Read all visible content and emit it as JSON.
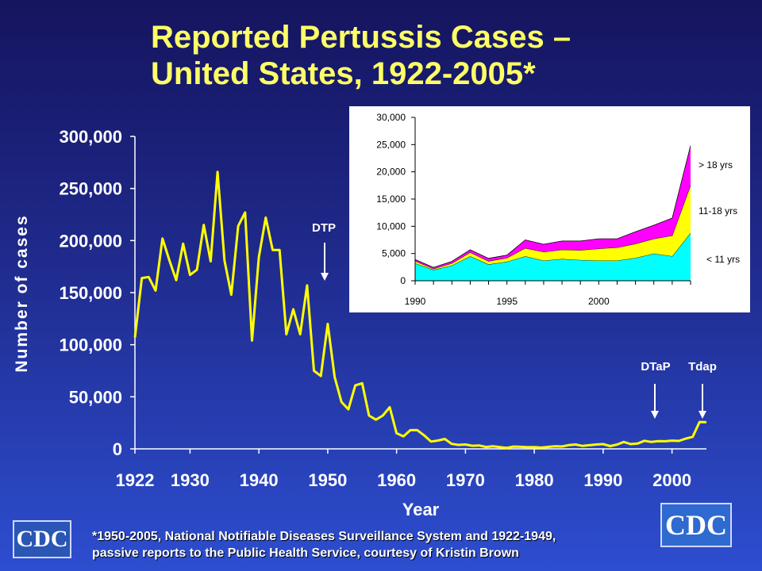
{
  "slide": {
    "title_line1": "Reported Pertussis Cases –",
    "title_line2": "United States, 1922-2005*",
    "footnote_line1": "*1950-2005, National Notifiable Diseases Surveillance System and 1922-1949,",
    "footnote_line2": "passive reports to the Public Health Service, courtesy of Kristin Brown",
    "logo_left": "CDC",
    "logo_right": "CDC"
  },
  "colors": {
    "main_line": "#ffff00",
    "under_11": "#00ffff",
    "age_11_18": "#ffff00",
    "over_18": "#ff00ff",
    "inset_bg": "#ffffff"
  },
  "chart_data": [
    {
      "type": "line",
      "title": "Reported Pertussis Cases – United States, 1922-2005*",
      "xlabel": "Year",
      "ylabel": "Number of cases",
      "xlim": [
        1922,
        2005
      ],
      "ylim": [
        0,
        300000
      ],
      "x_ticks": [
        1922,
        1930,
        1940,
        1950,
        1960,
        1970,
        1980,
        1990,
        2000
      ],
      "x_tick_labels": [
        "1922",
        "1930",
        "1940",
        "1950",
        "1960",
        "1970",
        "1980",
        "1990",
        "2000"
      ],
      "y_ticks": [
        0,
        50000,
        100000,
        150000,
        200000,
        250000,
        300000
      ],
      "y_tick_labels": [
        "0",
        "50,000",
        "100,000",
        "150,000",
        "200,000",
        "250,000",
        "300,000"
      ],
      "grid": false,
      "series": [
        {
          "x": [
            1922,
            1923,
            1924,
            1925,
            1926,
            1927,
            1928,
            1929,
            1930,
            1931,
            1932,
            1933,
            1934,
            1935,
            1936,
            1937,
            1938,
            1939,
            1940,
            1941,
            1942,
            1943,
            1944,
            1945,
            1946,
            1947,
            1948,
            1949,
            1950,
            1951,
            1952,
            1953,
            1954,
            1955,
            1956,
            1957,
            1958,
            1959,
            1960,
            1961,
            1962,
            1963,
            1964,
            1965,
            1966,
            1967,
            1968,
            1969,
            1970,
            1971,
            1972,
            1973,
            1974,
            1975,
            1976,
            1977,
            1978,
            1979,
            1980,
            1981,
            1982,
            1983,
            1984,
            1985,
            1986,
            1987,
            1988,
            1989,
            1990,
            1991,
            1992,
            1993,
            1994,
            1995,
            1996,
            1997,
            1998,
            1999,
            2000,
            2001,
            2002,
            2003,
            2004,
            2005
          ],
          "values": [
            107000,
            164000,
            165000,
            152000,
            202000,
            181000,
            162000,
            197000,
            167000,
            172000,
            215000,
            180000,
            266000,
            181000,
            148000,
            214000,
            227000,
            104000,
            184000,
            222000,
            191000,
            191000,
            110000,
            134000,
            110000,
            157000,
            75000,
            70000,
            120000,
            69000,
            45000,
            38000,
            61000,
            63000,
            32000,
            28000,
            32000,
            40000,
            15000,
            12000,
            18000,
            18000,
            13000,
            7000,
            8000,
            9500,
            4800,
            3800,
            4200,
            3000,
            3300,
            1800,
            2400,
            1700,
            1000,
            2200,
            2000,
            1600,
            1700,
            1200,
            1900,
            2500,
            2300,
            3600,
            4200,
            2800,
            3500,
            4200,
            4600,
            2700,
            4100,
            6600,
            4600,
            5100,
            7800,
            6600,
            7400,
            7300,
            7900,
            7600,
            9800,
            11600,
            25800,
            25600
          ]
        }
      ],
      "annotations": [
        {
          "label": "DTP",
          "x": 1949
        },
        {
          "label": "DTaP",
          "x": 1997
        },
        {
          "label": "Tdap",
          "x": 2005
        }
      ]
    },
    {
      "type": "area",
      "xlim": [
        1990,
        2005
      ],
      "ylim": [
        0,
        30000
      ],
      "x_ticks": [
        1990,
        1995,
        2000
      ],
      "x_tick_labels": [
        "1990",
        "1995",
        "2000"
      ],
      "y_ticks": [
        0,
        5000,
        10000,
        15000,
        20000,
        25000,
        30000
      ],
      "y_tick_labels": [
        "0",
        "5,000",
        "10,000",
        "15,000",
        "20,000",
        "25,000",
        "30,000"
      ],
      "stacked": true,
      "x": [
        1990,
        1991,
        1992,
        1993,
        1994,
        1995,
        1996,
        1997,
        1998,
        1999,
        2000,
        2001,
        2002,
        2003,
        2004,
        2005
      ],
      "series": [
        {
          "name": "< 11 yrs",
          "values": [
            3200,
            2000,
            2800,
            4500,
            3000,
            3500,
            4500,
            3700,
            4000,
            3800,
            3700,
            3700,
            4200,
            5000,
            4500,
            8800
          ]
        },
        {
          "name": "11-18 yrs",
          "values": [
            400,
            200,
            400,
            700,
            600,
            700,
            1500,
            1600,
            1700,
            1800,
            2200,
            2400,
            2600,
            2700,
            3800,
            8700
          ]
        },
        {
          "name": "> 18 yrs",
          "values": [
            300,
            250,
            350,
            500,
            500,
            500,
            1500,
            1400,
            1600,
            1700,
            1800,
            1600,
            2200,
            2500,
            3200,
            7300
          ]
        }
      ],
      "legend_placement": "right"
    }
  ]
}
